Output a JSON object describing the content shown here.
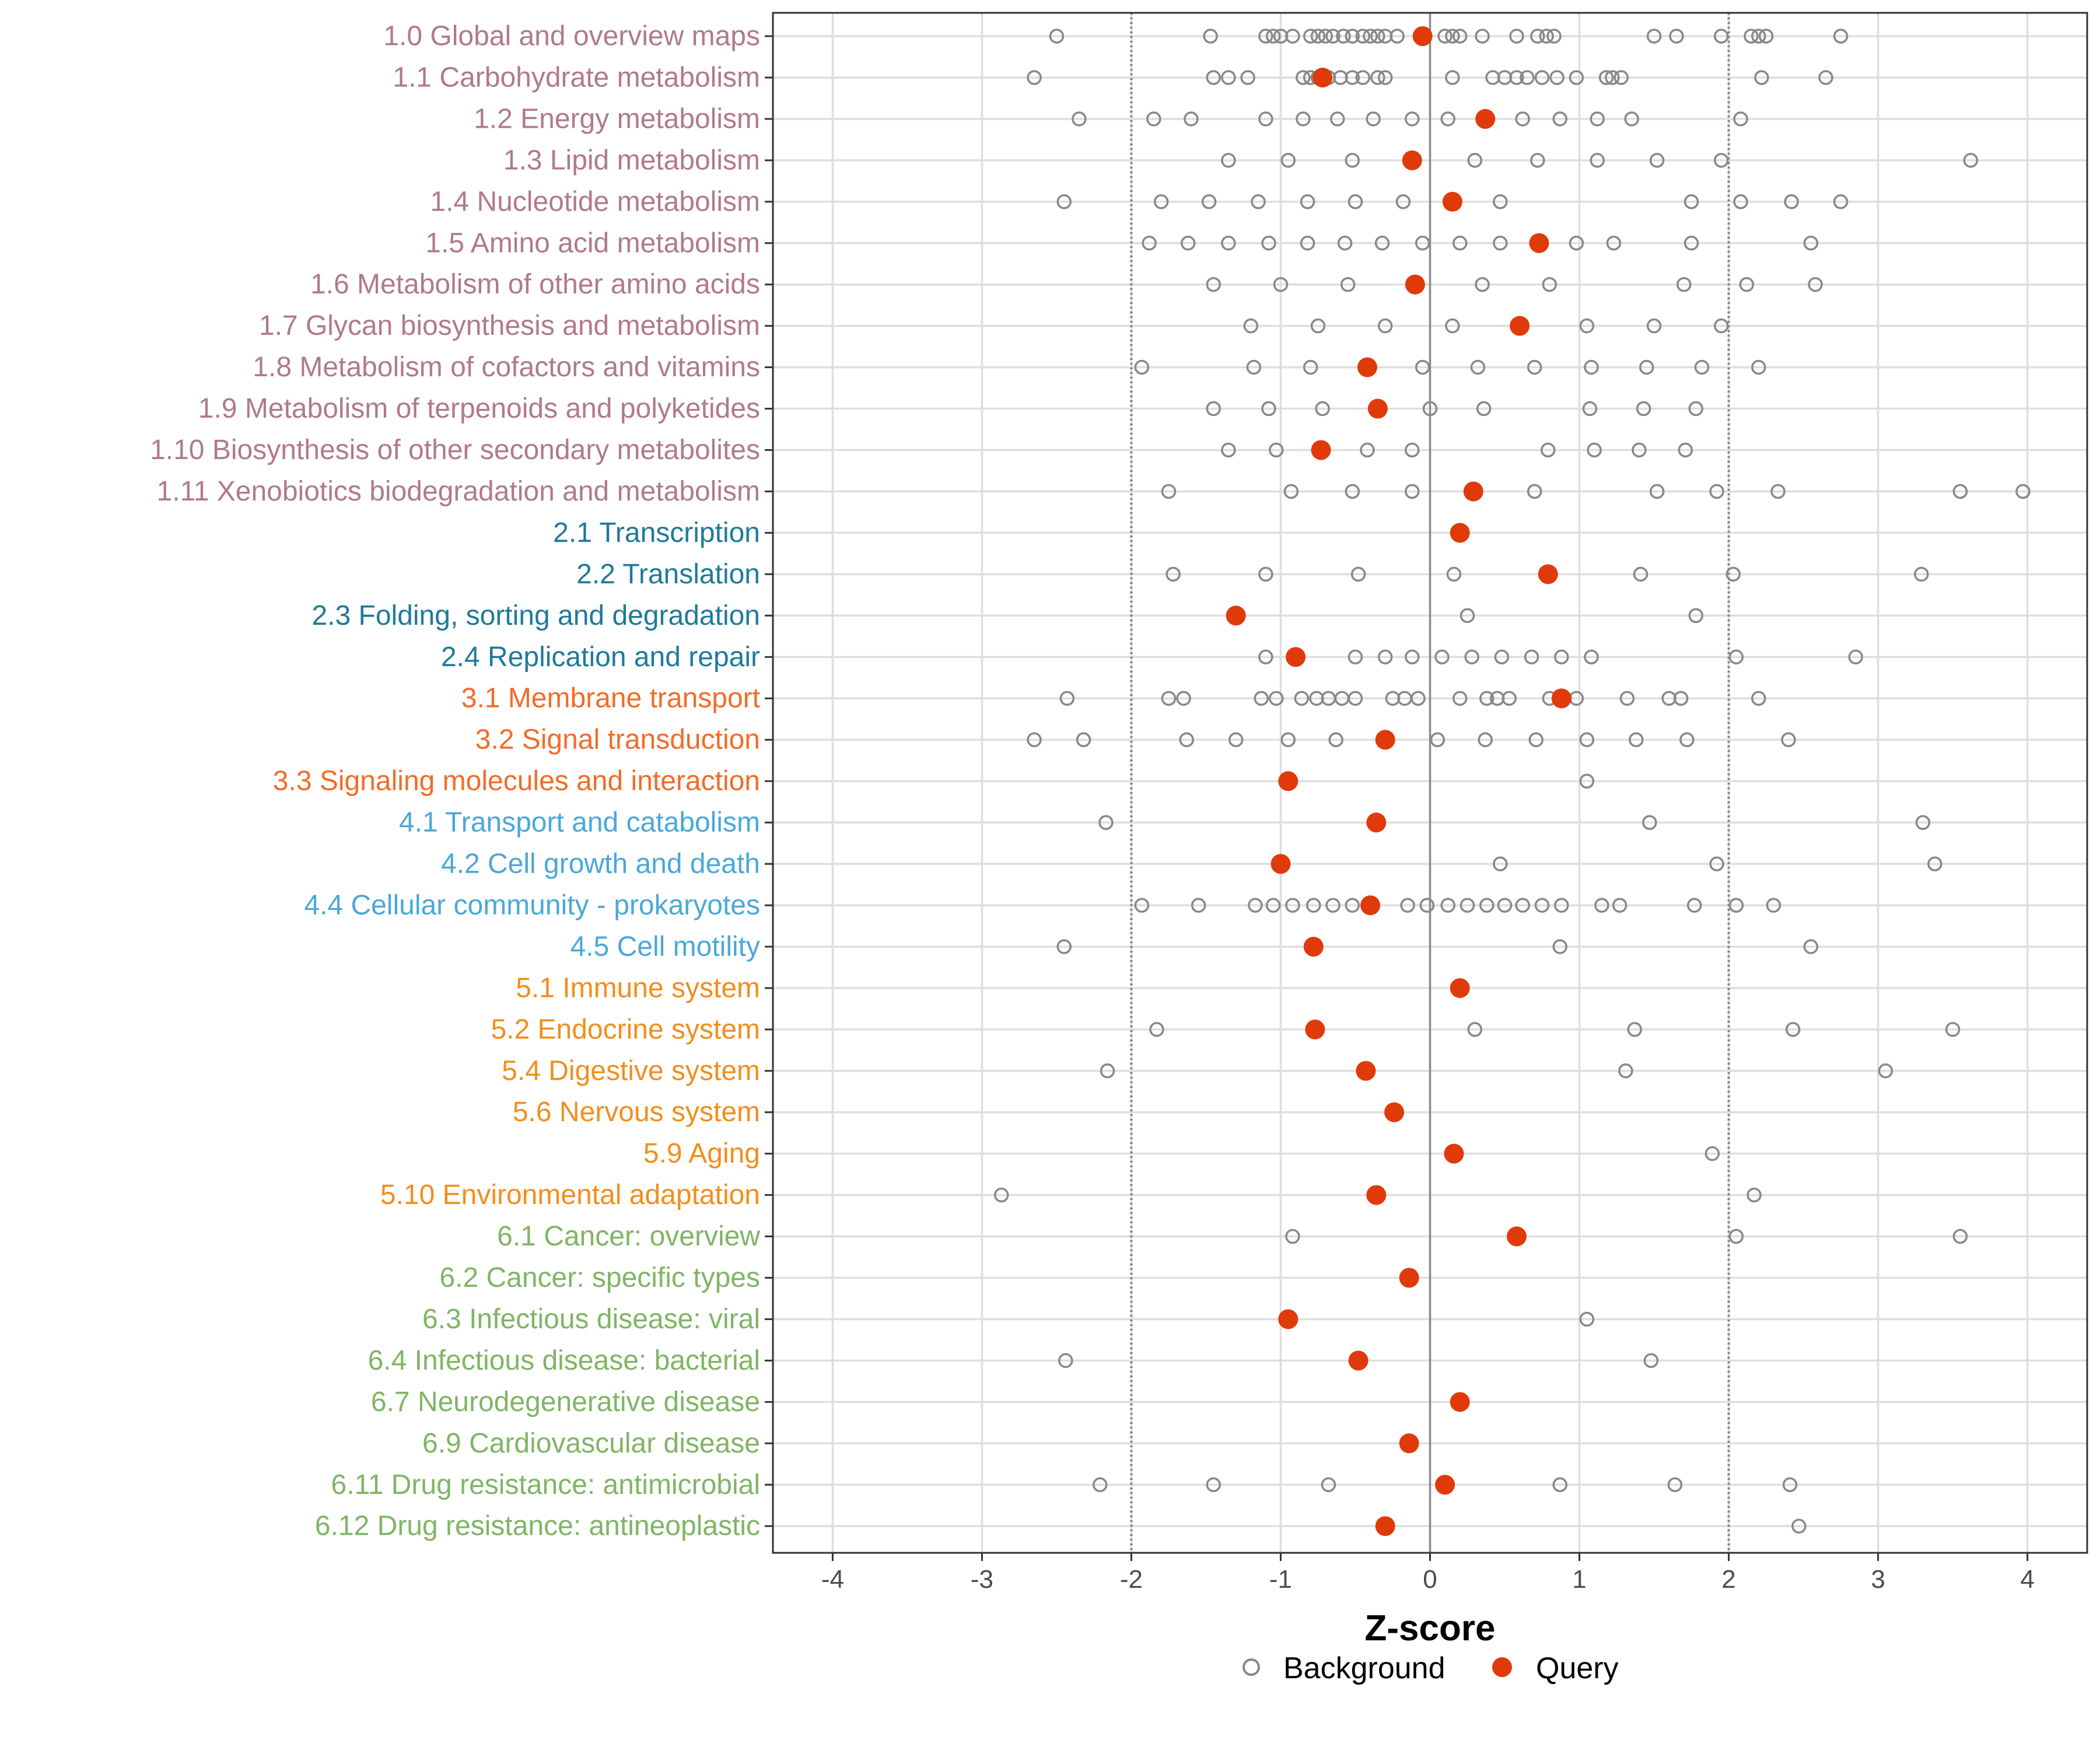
{
  "chart_data": {
    "type": "scatter",
    "xlabel": "Z-score",
    "xlim": [
      -4.4,
      4.4
    ],
    "xticks": [
      -4,
      -3,
      -2,
      -1,
      0,
      1,
      2,
      3,
      4
    ],
    "xtick_labels": [
      "-4",
      "-3",
      "-2",
      "-1",
      "0",
      "1",
      "2",
      "3",
      "4"
    ],
    "reference_lines": {
      "solid": [
        0
      ],
      "dotted": [
        -2,
        2
      ]
    },
    "legend": {
      "placement": "bottom",
      "entries": [
        {
          "name": "Background",
          "marker": "open circle",
          "color": "#888888"
        },
        {
          "name": "Query",
          "marker": "filled circle",
          "color": "#e03a0b"
        }
      ]
    },
    "group_colors": {
      "1": "#b07a8a",
      "2": "#1f7a9a",
      "3": "#f26c28",
      "4": "#4aa8d8",
      "5": "#f28e1c",
      "6": "#7fb565"
    },
    "categories": [
      {
        "label": "1.0 Global and overview maps",
        "group": "1",
        "query": -0.05,
        "background": [
          -2.5,
          -1.47,
          -1.1,
          -1.05,
          -1.0,
          -0.92,
          -0.8,
          -0.75,
          -0.7,
          -0.65,
          -0.58,
          -0.52,
          -0.45,
          -0.4,
          -0.35,
          -0.3,
          -0.22,
          0.1,
          0.15,
          0.2,
          0.35,
          0.58,
          0.72,
          0.78,
          0.83,
          1.5,
          1.65,
          1.95,
          2.15,
          2.2,
          2.25,
          2.75
        ]
      },
      {
        "label": "1.1 Carbohydrate metabolism",
        "group": "1",
        "query": -0.72,
        "background": [
          -2.65,
          -1.45,
          -1.35,
          -1.22,
          -0.85,
          -0.8,
          -0.75,
          -0.68,
          -0.6,
          -0.52,
          -0.45,
          -0.35,
          -0.3,
          0.15,
          0.42,
          0.5,
          0.58,
          0.65,
          0.75,
          0.85,
          0.98,
          1.18,
          1.22,
          1.28,
          2.22,
          2.65
        ]
      },
      {
        "label": "1.2 Energy metabolism",
        "group": "1",
        "query": 0.37,
        "background": [
          -2.35,
          -1.85,
          -1.6,
          -1.1,
          -0.85,
          -0.62,
          -0.38,
          -0.12,
          0.12,
          0.62,
          0.87,
          1.12,
          1.35,
          2.08
        ]
      },
      {
        "label": "1.3 Lipid metabolism",
        "group": "1",
        "query": -0.12,
        "background": [
          -1.35,
          -0.95,
          -0.52,
          0.3,
          0.72,
          1.12,
          1.52,
          1.95,
          3.62
        ]
      },
      {
        "label": "1.4 Nucleotide metabolism",
        "group": "1",
        "query": 0.15,
        "background": [
          -2.45,
          -1.8,
          -1.48,
          -1.15,
          -0.82,
          -0.5,
          -0.18,
          0.47,
          1.75,
          2.08,
          2.42,
          2.75
        ]
      },
      {
        "label": "1.5 Amino acid metabolism",
        "group": "1",
        "query": 0.73,
        "background": [
          -1.88,
          -1.62,
          -1.35,
          -1.08,
          -0.82,
          -0.57,
          -0.32,
          -0.05,
          0.2,
          0.47,
          0.98,
          1.23,
          1.75,
          2.55
        ]
      },
      {
        "label": "1.6 Metabolism of other amino acids",
        "group": "1",
        "query": -0.1,
        "background": [
          -1.45,
          -1.0,
          -0.55,
          0.35,
          0.8,
          1.7,
          2.12,
          2.58
        ]
      },
      {
        "label": "1.7 Glycan biosynthesis and metabolism",
        "group": "1",
        "query": 0.6,
        "background": [
          -1.2,
          -0.75,
          -0.3,
          0.15,
          1.05,
          1.5,
          1.95
        ]
      },
      {
        "label": "1.8 Metabolism of cofactors and vitamins",
        "group": "1",
        "query": -0.42,
        "background": [
          -1.93,
          -1.18,
          -0.8,
          -0.05,
          0.32,
          0.7,
          1.08,
          1.45,
          1.82,
          2.2
        ]
      },
      {
        "label": "1.9 Metabolism of terpenoids and polyketides",
        "group": "1",
        "query": -0.35,
        "background": [
          -1.45,
          -1.08,
          -0.72,
          0.0,
          0.36,
          1.07,
          1.43,
          1.78
        ]
      },
      {
        "label": "1.10 Biosynthesis of other secondary metabolites",
        "group": "1",
        "query": -0.73,
        "background": [
          -1.35,
          -1.03,
          -0.42,
          -0.12,
          0.79,
          1.1,
          1.4,
          1.71
        ]
      },
      {
        "label": "1.11 Xenobiotics biodegradation and metabolism",
        "group": "1",
        "query": 0.29,
        "background": [
          -1.75,
          -0.93,
          -0.52,
          -0.12,
          0.7,
          1.52,
          1.92,
          2.33,
          3.55,
          3.97
        ]
      },
      {
        "label": "2.1 Transcription",
        "group": "2",
        "query": 0.2,
        "background": []
      },
      {
        "label": "2.2 Translation",
        "group": "2",
        "query": 0.79,
        "background": [
          -1.72,
          -1.1,
          -0.48,
          0.16,
          1.41,
          2.03,
          3.29
        ]
      },
      {
        "label": "2.3 Folding, sorting and degradation",
        "group": "2",
        "query": -1.3,
        "background": [
          0.25,
          1.78
        ]
      },
      {
        "label": "2.4 Replication and repair",
        "group": "2",
        "query": -0.9,
        "background": [
          -1.1,
          -0.5,
          -0.3,
          -0.12,
          0.08,
          0.28,
          0.48,
          0.68,
          0.88,
          1.08,
          2.05,
          2.85
        ]
      },
      {
        "label": "3.1 Membrane transport",
        "group": "3",
        "query": 0.88,
        "background": [
          -2.43,
          -1.75,
          -1.65,
          -1.13,
          -1.03,
          -0.86,
          -0.76,
          -0.68,
          -0.59,
          -0.5,
          -0.25,
          -0.17,
          -0.08,
          0.2,
          0.38,
          0.45,
          0.53,
          0.8,
          0.9,
          0.98,
          1.32,
          1.6,
          1.68,
          2.2
        ]
      },
      {
        "label": "3.2 Signal transduction",
        "group": "3",
        "query": -0.3,
        "background": [
          -2.65,
          -2.32,
          -1.63,
          -1.3,
          -0.95,
          -0.63,
          0.05,
          0.37,
          0.71,
          1.05,
          1.38,
          1.72,
          2.4
        ]
      },
      {
        "label": "3.3 Signaling molecules and interaction",
        "group": "3",
        "query": -0.95,
        "background": [
          1.05
        ]
      },
      {
        "label": "4.1 Transport and catabolism",
        "group": "4",
        "query": -0.36,
        "background": [
          -2.17,
          1.47,
          3.3
        ]
      },
      {
        "label": "4.2 Cell growth and death",
        "group": "4",
        "query": -1.0,
        "background": [
          0.47,
          1.92,
          3.38
        ]
      },
      {
        "label": "4.4 Cellular community - prokaryotes",
        "group": "4",
        "query": -0.4,
        "background": [
          -1.93,
          -1.55,
          -1.17,
          -1.05,
          -0.92,
          -0.78,
          -0.65,
          -0.52,
          -0.15,
          -0.02,
          0.12,
          0.25,
          0.38,
          0.5,
          0.62,
          0.75,
          0.88,
          1.15,
          1.27,
          1.77,
          2.05,
          2.3
        ]
      },
      {
        "label": "4.5 Cell motility",
        "group": "4",
        "query": -0.78,
        "background": [
          -2.45,
          0.87,
          2.55
        ]
      },
      {
        "label": "5.1 Immune system",
        "group": "5",
        "query": 0.2,
        "background": []
      },
      {
        "label": "5.2 Endocrine system",
        "group": "5",
        "query": -0.77,
        "background": [
          -1.83,
          0.3,
          1.37,
          2.43,
          3.5
        ]
      },
      {
        "label": "5.4 Digestive system",
        "group": "5",
        "query": -0.43,
        "background": [
          -2.16,
          1.31,
          3.05
        ]
      },
      {
        "label": "5.6 Nervous system",
        "group": "5",
        "query": -0.24,
        "background": []
      },
      {
        "label": "5.9 Aging",
        "group": "5",
        "query": 0.16,
        "background": [
          1.89
        ]
      },
      {
        "label": "5.10 Environmental adaptation",
        "group": "5",
        "query": -0.36,
        "background": [
          -2.87,
          2.17
        ]
      },
      {
        "label": "6.1 Cancer: overview",
        "group": "6",
        "query": 0.58,
        "background": [
          -0.92,
          2.05,
          3.55
        ]
      },
      {
        "label": "6.2 Cancer: specific types",
        "group": "6",
        "query": -0.14,
        "background": []
      },
      {
        "label": "6.3 Infectious disease: viral",
        "group": "6",
        "query": -0.95,
        "background": [
          1.05
        ]
      },
      {
        "label": "6.4 Infectious disease: bacterial",
        "group": "6",
        "query": -0.48,
        "background": [
          -2.44,
          1.48
        ]
      },
      {
        "label": "6.7 Neurodegenerative disease",
        "group": "6",
        "query": 0.2,
        "background": []
      },
      {
        "label": "6.9 Cardiovascular disease",
        "group": "6",
        "query": -0.14,
        "background": []
      },
      {
        "label": "6.11 Drug resistance: antimicrobial",
        "group": "6",
        "query": 0.1,
        "background": [
          -2.21,
          -1.45,
          -0.68,
          0.87,
          1.64,
          2.41
        ]
      },
      {
        "label": "6.12 Drug resistance: antineoplastic",
        "group": "6",
        "query": -0.3,
        "background": [
          2.47
        ]
      }
    ]
  }
}
